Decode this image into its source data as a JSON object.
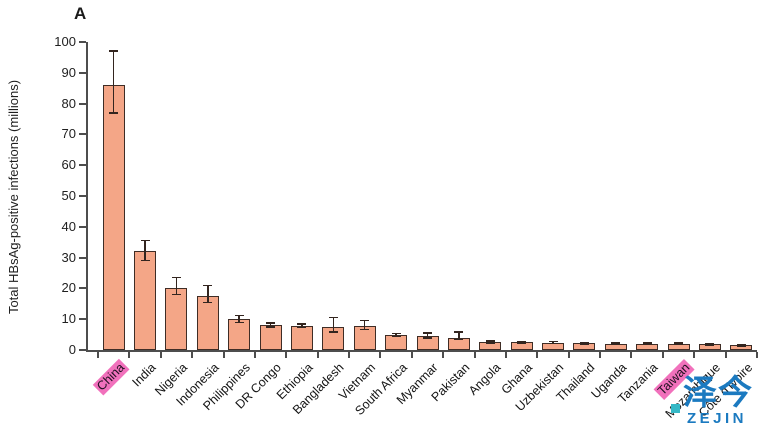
{
  "panel_label": "A",
  "watermark": {
    "cn": "泽今",
    "latin": "ZEJIN",
    "color": "#1b7ac0",
    "teal_color": "#35b8c6"
  },
  "chart_data": {
    "type": "bar",
    "title": "",
    "xlabel": "",
    "ylabel": "Total HBsAg-positive infections (millions)",
    "ylim": [
      0,
      100
    ],
    "ytick_step": 10,
    "yticks": [
      0,
      10,
      20,
      30,
      40,
      50,
      60,
      70,
      80,
      90,
      100
    ],
    "grid": false,
    "legend": "none",
    "bar_color": "#f4a687",
    "bar_border_color": "#3f2d26",
    "error_color": "#33251f",
    "axis_color": "#4d4d4d",
    "highlight_color": "#f171bc",
    "highlighted_categories": [
      "China",
      "Taiwan"
    ],
    "categories": [
      "China",
      "India",
      "Nigeria",
      "Indonesia",
      "Philippines",
      "DR Congo",
      "Ethiopia",
      "Bangladesh",
      "Vietnam",
      "South Africa",
      "Myanmar",
      "Pakistan",
      "Angola",
      "Ghana",
      "Uzbekistan",
      "Thailand",
      "Uganda",
      "Tanzania",
      "Taiwan",
      "Mozambique",
      "Côte d'Ivoire"
    ],
    "values": [
      86,
      32,
      20,
      17.5,
      10,
      8,
      7.8,
      7.5,
      7.8,
      4.8,
      4.4,
      3.9,
      2.6,
      2.5,
      2.4,
      2.2,
      2.1,
      2.1,
      2.0,
      1.9,
      1.5
    ],
    "error_low": [
      77,
      29,
      18,
      15.5,
      9,
      7.5,
      7.3,
      5.8,
      6.6,
      4.4,
      3.9,
      3.4,
      2.3,
      2.2,
      2.1,
      2.0,
      1.9,
      1.9,
      1.8,
      1.7,
      1.35
    ],
    "error_high": [
      97,
      35.5,
      23.5,
      21,
      11.2,
      8.7,
      8.4,
      10.5,
      9.6,
      5.3,
      5.6,
      5.8,
      3.0,
      2.8,
      2.8,
      2.5,
      2.3,
      2.4,
      2.2,
      2.1,
      1.7
    ]
  }
}
